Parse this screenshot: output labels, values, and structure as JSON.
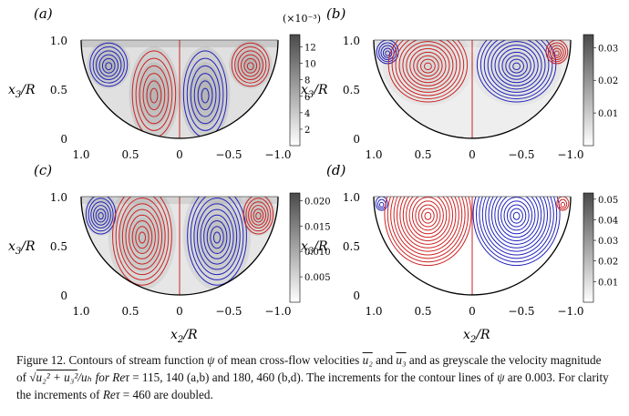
{
  "panels": [
    {
      "id": "a",
      "label": "(a)",
      "colorbar": {
        "exponent": "(×10⁻³)",
        "ticks": [
          "12",
          "10",
          "8",
          "6",
          "4",
          "2"
        ],
        "values": [
          12,
          10,
          8,
          6,
          4,
          2
        ],
        "max": 13.5
      }
    },
    {
      "id": "b",
      "label": "(b)",
      "colorbar": {
        "exponent": "",
        "ticks": [
          "0.03",
          "0.02",
          "0.01"
        ],
        "values": [
          0.03,
          0.02,
          0.01
        ],
        "max": 0.034
      }
    },
    {
      "id": "c",
      "label": "(c)",
      "colorbar": {
        "exponent": "",
        "ticks": [
          "0.020",
          "0.015",
          "0.010",
          "0.005"
        ],
        "values": [
          0.02,
          0.015,
          0.01,
          0.005
        ],
        "max": 0.0215
      }
    },
    {
      "id": "d",
      "label": "(d)",
      "colorbar": {
        "exponent": "",
        "ticks": [
          "0.05",
          "0.04",
          "0.03",
          "0.02",
          "0.01"
        ],
        "values": [
          0.05,
          0.04,
          0.03,
          0.02,
          0.01
        ],
        "max": 0.053
      }
    }
  ],
  "axes": {
    "y_ticks": [
      "1.0",
      "0.5",
      "0"
    ],
    "y_values": [
      1.0,
      0.5,
      0
    ],
    "x_ticks": [
      "1.0",
      "0.5",
      "0",
      "−0.5",
      "−1.0"
    ],
    "x_values": [
      1.0,
      0.5,
      0,
      -0.5,
      -1.0
    ],
    "y_label_main": "x",
    "y_label_sub": "3",
    "y_label_tail": "/R",
    "x_label_main": "x",
    "x_label_sub": "2",
    "x_label_tail": "/R"
  },
  "colors": {
    "positive": "#cc2222",
    "negative": "#2222bb",
    "boundary": "#000000"
  },
  "caption": {
    "figure": "Figure 12.",
    "t1": "Contours of stream function",
    "psi": "ψ",
    "t2": "of mean cross-flow velocities",
    "u2": "u₂",
    "and": "and",
    "u3": "u₃",
    "t3": "and as greyscale the velocity magnitude of",
    "mag": "u₂² + u₃²",
    "ub": "/uₕ for",
    "re": "Reτ",
    "t4": "= 115, 140 (a,b) and 180, 460 (b,d). The increments for the contour lines of",
    "t5": "are 0.003. For clarity the increments of",
    "t6": "= 460 are doubled."
  }
}
